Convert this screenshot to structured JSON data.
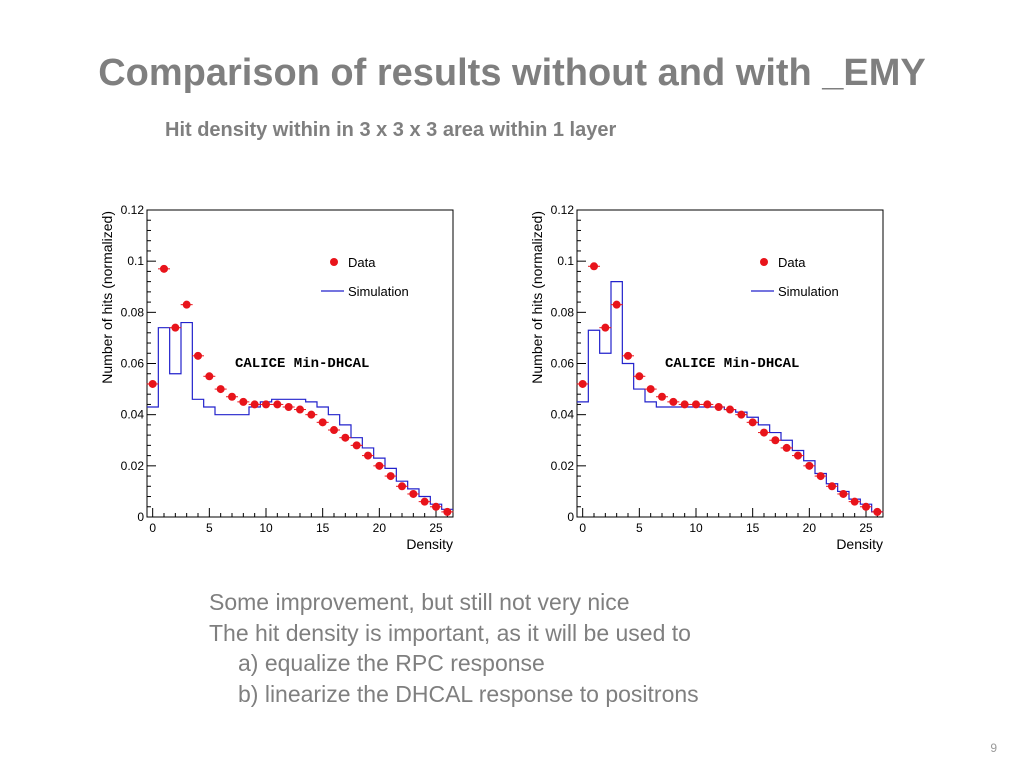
{
  "slide": {
    "title": "Comparison of results without and with _EMY",
    "subtitle": "Hit density within in 3 x 3 x 3 area within 1 layer",
    "bullets": [
      "Some improvement, but still not very nice",
      "The hit density is important, as it will be used to",
      "a) equalize the RPC response",
      "b) linearize the DHCAL response to positrons"
    ],
    "page_number": "9"
  },
  "colors": {
    "data": "#e8141b",
    "simulation": "#2222cc",
    "text": "#7f7f7f"
  },
  "chart_data": [
    {
      "type": "line",
      "title": "",
      "xlabel": "Density",
      "ylabel": "Number of hits (normalized)",
      "xlim": [
        -0.5,
        26.5
      ],
      "ylim": [
        0,
        0.12
      ],
      "xticks": [
        "0",
        "5",
        "10",
        "15",
        "20",
        "25"
      ],
      "yticks": [
        "0",
        "0.02",
        "0.04",
        "0.06",
        "0.08",
        "0.1",
        "0.12"
      ],
      "annotation": "CALICE Min-DHCAL",
      "legend_position": "top-right",
      "legend": [
        "Data",
        "Simulation"
      ],
      "x": [
        0,
        1,
        2,
        3,
        4,
        5,
        6,
        7,
        8,
        9,
        10,
        11,
        12,
        13,
        14,
        15,
        16,
        17,
        18,
        19,
        20,
        21,
        22,
        23,
        24,
        25,
        26
      ],
      "series": [
        {
          "name": "Data",
          "style": "markers",
          "values": [
            0.052,
            0.097,
            0.074,
            0.083,
            0.063,
            0.055,
            0.05,
            0.047,
            0.045,
            0.044,
            0.044,
            0.044,
            0.043,
            0.042,
            0.04,
            0.037,
            0.034,
            0.031,
            0.028,
            0.024,
            0.02,
            0.016,
            0.012,
            0.009,
            0.006,
            0.004,
            0.002
          ]
        },
        {
          "name": "Simulation",
          "style": "step",
          "values": [
            0.043,
            0.074,
            0.056,
            0.076,
            0.046,
            0.043,
            0.04,
            0.04,
            0.04,
            0.043,
            0.045,
            0.046,
            0.046,
            0.046,
            0.045,
            0.043,
            0.04,
            0.036,
            0.031,
            0.027,
            0.023,
            0.019,
            0.014,
            0.011,
            0.008,
            0.005,
            0.003
          ]
        }
      ]
    },
    {
      "type": "line",
      "title": "",
      "xlabel": "Density",
      "ylabel": "Number of hits (normalized)",
      "xlim": [
        -0.5,
        26.5
      ],
      "ylim": [
        0,
        0.12
      ],
      "xticks": [
        "0",
        "5",
        "10",
        "15",
        "20",
        "25"
      ],
      "yticks": [
        "0",
        "0.02",
        "0.04",
        "0.06",
        "0.08",
        "0.1",
        "0.12"
      ],
      "annotation": "CALICE Min-DHCAL",
      "legend_position": "top-right",
      "legend": [
        "Data",
        "Simulation"
      ],
      "x": [
        0,
        1,
        2,
        3,
        4,
        5,
        6,
        7,
        8,
        9,
        10,
        11,
        12,
        13,
        14,
        15,
        16,
        17,
        18,
        19,
        20,
        21,
        22,
        23,
        24,
        25,
        26
      ],
      "series": [
        {
          "name": "Data",
          "style": "markers",
          "values": [
            0.052,
            0.098,
            0.074,
            0.083,
            0.063,
            0.055,
            0.05,
            0.047,
            0.045,
            0.044,
            0.044,
            0.044,
            0.043,
            0.042,
            0.04,
            0.037,
            0.033,
            0.03,
            0.027,
            0.024,
            0.02,
            0.016,
            0.012,
            0.009,
            0.006,
            0.004,
            0.002
          ]
        },
        {
          "name": "Simulation",
          "style": "step",
          "values": [
            0.045,
            0.073,
            0.064,
            0.092,
            0.06,
            0.05,
            0.045,
            0.043,
            0.043,
            0.043,
            0.043,
            0.043,
            0.043,
            0.042,
            0.041,
            0.039,
            0.036,
            0.033,
            0.03,
            0.026,
            0.022,
            0.017,
            0.013,
            0.01,
            0.007,
            0.005,
            0.002
          ]
        }
      ]
    }
  ]
}
